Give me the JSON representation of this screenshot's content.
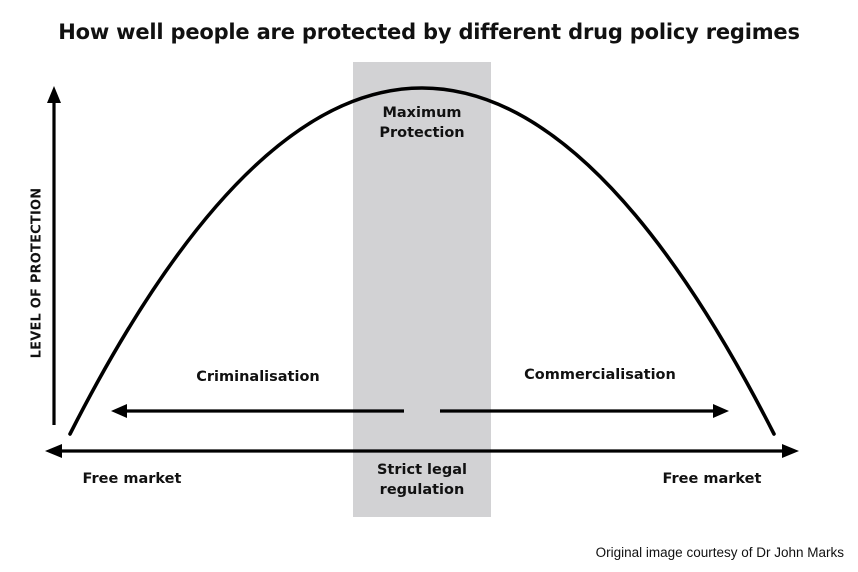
{
  "title": "How well people are protected by different drug policy regimes",
  "y_axis_label": "LEVEL OF PROTECTION",
  "peak_label": "Maximum Protection",
  "middle_label": "Strict legal regulation",
  "left_direction_label": "Criminalisation",
  "right_direction_label": "Commercialisation",
  "left_end_label": "Free market",
  "right_end_label": "Free market",
  "credit": "Original image courtesy of Dr John Marks",
  "colors": {
    "curve": "#000000",
    "band": "#d2d2d4",
    "text": "#111111"
  }
}
